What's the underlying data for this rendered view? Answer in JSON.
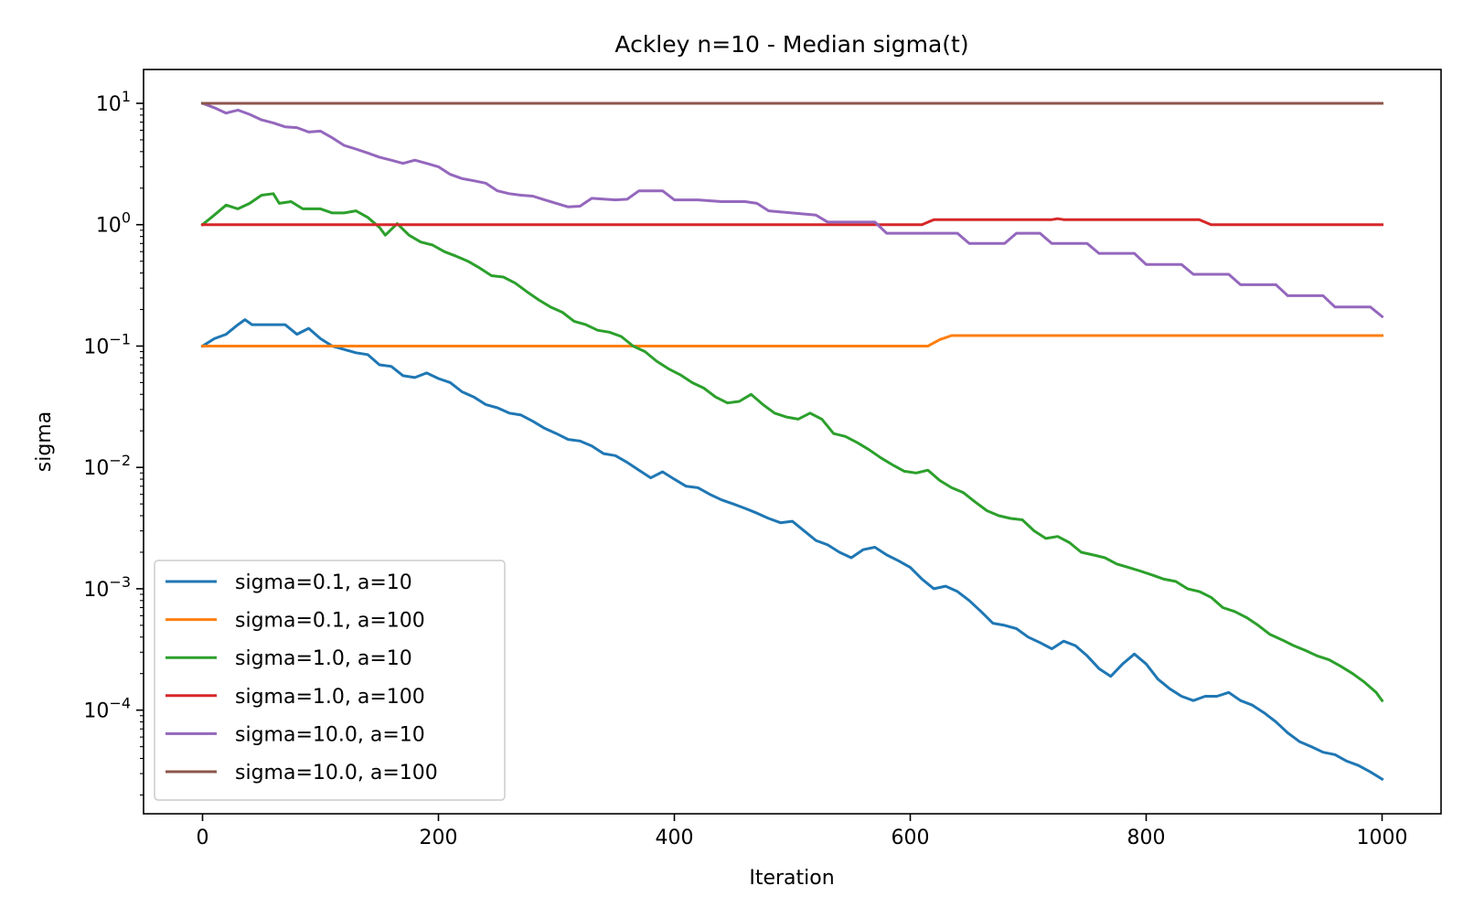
{
  "chart_data": {
    "type": "line",
    "title": "Ackley n=10 - Median sigma(t)",
    "xlabel": "Iteration",
    "ylabel": "sigma",
    "xlim": [
      -50,
      1050
    ],
    "ylim": [
      1.4e-05,
      19
    ],
    "yscale": "log",
    "grid": false,
    "legend_position": "lower-left",
    "x_ticks": [
      {
        "value": 0,
        "label": "0"
      },
      {
        "value": 200,
        "label": "200"
      },
      {
        "value": 400,
        "label": "400"
      },
      {
        "value": 600,
        "label": "600"
      },
      {
        "value": 800,
        "label": "800"
      },
      {
        "value": 1000,
        "label": "1000"
      }
    ],
    "y_ticks": [
      {
        "value": 10,
        "base": "10",
        "exp": "1"
      },
      {
        "value": 1,
        "base": "10",
        "exp": "0"
      },
      {
        "value": 0.1,
        "base": "10",
        "exp": "−1"
      },
      {
        "value": 0.01,
        "base": "10",
        "exp": "−2"
      },
      {
        "value": 0.001,
        "base": "10",
        "exp": "−3"
      },
      {
        "value": 0.0001,
        "base": "10",
        "exp": "−4"
      }
    ],
    "series": [
      {
        "name": "sigma=0.1, a=10",
        "color": "#1f77b4",
        "points": [
          [
            0,
            0.1
          ],
          [
            10,
            0.115
          ],
          [
            20,
            0.125
          ],
          [
            30,
            0.15
          ],
          [
            36,
            0.165
          ],
          [
            42,
            0.15
          ],
          [
            70,
            0.15
          ],
          [
            80,
            0.125
          ],
          [
            90,
            0.14
          ],
          [
            100,
            0.115
          ],
          [
            110,
            0.1
          ],
          [
            130,
            0.088
          ],
          [
            140,
            0.085
          ],
          [
            150,
            0.07
          ],
          [
            160,
            0.068
          ],
          [
            170,
            0.057
          ],
          [
            180,
            0.055
          ],
          [
            190,
            0.06
          ],
          [
            200,
            0.054
          ],
          [
            210,
            0.05
          ],
          [
            220,
            0.042
          ],
          [
            230,
            0.038
          ],
          [
            240,
            0.033
          ],
          [
            250,
            0.031
          ],
          [
            260,
            0.028
          ],
          [
            270,
            0.027
          ],
          [
            280,
            0.024
          ],
          [
            290,
            0.021
          ],
          [
            300,
            0.019
          ],
          [
            310,
            0.017
          ],
          [
            320,
            0.0165
          ],
          [
            330,
            0.015
          ],
          [
            340,
            0.013
          ],
          [
            350,
            0.0125
          ],
          [
            360,
            0.011
          ],
          [
            370,
            0.0095
          ],
          [
            380,
            0.0082
          ],
          [
            390,
            0.0092
          ],
          [
            400,
            0.008
          ],
          [
            410,
            0.007
          ],
          [
            420,
            0.0068
          ],
          [
            430,
            0.006
          ],
          [
            440,
            0.0054
          ],
          [
            450,
            0.005
          ],
          [
            460,
            0.0046
          ],
          [
            470,
            0.0042
          ],
          [
            480,
            0.0038
          ],
          [
            490,
            0.0035
          ],
          [
            500,
            0.0036
          ],
          [
            510,
            0.003
          ],
          [
            520,
            0.0025
          ],
          [
            530,
            0.0023
          ],
          [
            540,
            0.002
          ],
          [
            550,
            0.0018
          ],
          [
            560,
            0.0021
          ],
          [
            570,
            0.0022
          ],
          [
            580,
            0.0019
          ],
          [
            590,
            0.0017
          ],
          [
            600,
            0.0015
          ],
          [
            610,
            0.0012
          ],
          [
            620,
            0.001
          ],
          [
            630,
            0.00105
          ],
          [
            640,
            0.00095
          ],
          [
            650,
            0.0008
          ],
          [
            660,
            0.00065
          ],
          [
            670,
            0.00052
          ],
          [
            680,
            0.0005
          ],
          [
            690,
            0.00047
          ],
          [
            700,
            0.0004
          ],
          [
            710,
            0.00036
          ],
          [
            720,
            0.00032
          ],
          [
            730,
            0.00037
          ],
          [
            740,
            0.00034
          ],
          [
            750,
            0.00028
          ],
          [
            760,
            0.00022
          ],
          [
            770,
            0.00019
          ],
          [
            780,
            0.00024
          ],
          [
            790,
            0.00029
          ],
          [
            800,
            0.00024
          ],
          [
            810,
            0.00018
          ],
          [
            820,
            0.00015
          ],
          [
            830,
            0.00013
          ],
          [
            840,
            0.00012
          ],
          [
            850,
            0.00013
          ],
          [
            860,
            0.00013
          ],
          [
            870,
            0.00014
          ],
          [
            880,
            0.00012
          ],
          [
            890,
            0.00011
          ],
          [
            900,
            9.5e-05
          ],
          [
            910,
            8e-05
          ],
          [
            920,
            6.5e-05
          ],
          [
            930,
            5.5e-05
          ],
          [
            940,
            5e-05
          ],
          [
            950,
            4.5e-05
          ],
          [
            960,
            4.3e-05
          ],
          [
            970,
            3.8e-05
          ],
          [
            980,
            3.5e-05
          ],
          [
            990,
            3.1e-05
          ],
          [
            1000,
            2.7e-05
          ]
        ]
      },
      {
        "name": "sigma=0.1, a=100",
        "color": "#ff7f0e",
        "points": [
          [
            0,
            0.1
          ],
          [
            615,
            0.1
          ],
          [
            625,
            0.113
          ],
          [
            635,
            0.122
          ],
          [
            1000,
            0.122
          ]
        ]
      },
      {
        "name": "sigma=1.0, a=10",
        "color": "#2ca02c",
        "points": [
          [
            0,
            1.0
          ],
          [
            10,
            1.2
          ],
          [
            20,
            1.45
          ],
          [
            30,
            1.35
          ],
          [
            40,
            1.5
          ],
          [
            50,
            1.75
          ],
          [
            60,
            1.8
          ],
          [
            65,
            1.5
          ],
          [
            75,
            1.55
          ],
          [
            85,
            1.35
          ],
          [
            100,
            1.35
          ],
          [
            110,
            1.25
          ],
          [
            120,
            1.25
          ],
          [
            130,
            1.3
          ],
          [
            140,
            1.15
          ],
          [
            150,
            0.95
          ],
          [
            155,
            0.82
          ],
          [
            165,
            1.02
          ],
          [
            175,
            0.82
          ],
          [
            185,
            0.72
          ],
          [
            195,
            0.68
          ],
          [
            205,
            0.6
          ],
          [
            215,
            0.55
          ],
          [
            225,
            0.5
          ],
          [
            235,
            0.44
          ],
          [
            245,
            0.38
          ],
          [
            255,
            0.37
          ],
          [
            265,
            0.33
          ],
          [
            275,
            0.28
          ],
          [
            285,
            0.24
          ],
          [
            295,
            0.21
          ],
          [
            305,
            0.19
          ],
          [
            315,
            0.16
          ],
          [
            325,
            0.15
          ],
          [
            335,
            0.135
          ],
          [
            345,
            0.13
          ],
          [
            355,
            0.12
          ],
          [
            365,
            0.1
          ],
          [
            375,
            0.09
          ],
          [
            385,
            0.075
          ],
          [
            395,
            0.065
          ],
          [
            405,
            0.058
          ],
          [
            415,
            0.05
          ],
          [
            425,
            0.045
          ],
          [
            435,
            0.038
          ],
          [
            445,
            0.034
          ],
          [
            455,
            0.035
          ],
          [
            465,
            0.04
          ],
          [
            475,
            0.033
          ],
          [
            485,
            0.028
          ],
          [
            495,
            0.026
          ],
          [
            505,
            0.025
          ],
          [
            515,
            0.028
          ],
          [
            525,
            0.025
          ],
          [
            535,
            0.019
          ],
          [
            545,
            0.018
          ],
          [
            555,
            0.016
          ],
          [
            565,
            0.014
          ],
          [
            575,
            0.012
          ],
          [
            585,
            0.0105
          ],
          [
            595,
            0.0093
          ],
          [
            605,
            0.009
          ],
          [
            615,
            0.0095
          ],
          [
            625,
            0.0078
          ],
          [
            635,
            0.0068
          ],
          [
            645,
            0.0062
          ],
          [
            655,
            0.0052
          ],
          [
            665,
            0.0044
          ],
          [
            675,
            0.004
          ],
          [
            685,
            0.0038
          ],
          [
            695,
            0.0037
          ],
          [
            705,
            0.003
          ],
          [
            715,
            0.0026
          ],
          [
            725,
            0.0027
          ],
          [
            735,
            0.0024
          ],
          [
            745,
            0.002
          ],
          [
            755,
            0.0019
          ],
          [
            765,
            0.0018
          ],
          [
            775,
            0.0016
          ],
          [
            785,
            0.0015
          ],
          [
            795,
            0.0014
          ],
          [
            805,
            0.0013
          ],
          [
            815,
            0.0012
          ],
          [
            825,
            0.00115
          ],
          [
            835,
            0.001
          ],
          [
            845,
            0.00095
          ],
          [
            855,
            0.00085
          ],
          [
            865,
            0.0007
          ],
          [
            875,
            0.00065
          ],
          [
            885,
            0.00058
          ],
          [
            895,
            0.0005
          ],
          [
            905,
            0.00042
          ],
          [
            915,
            0.00038
          ],
          [
            925,
            0.00034
          ],
          [
            935,
            0.00031
          ],
          [
            945,
            0.00028
          ],
          [
            955,
            0.00026
          ],
          [
            965,
            0.00023
          ],
          [
            975,
            0.0002
          ],
          [
            985,
            0.00017
          ],
          [
            995,
            0.00014
          ],
          [
            1000,
            0.00012
          ]
        ]
      },
      {
        "name": "sigma=1.0, a=100",
        "color": "#d62728",
        "points": [
          [
            0,
            1.0
          ],
          [
            610,
            1.0
          ],
          [
            620,
            1.1
          ],
          [
            720,
            1.1
          ],
          [
            725,
            1.12
          ],
          [
            730,
            1.1
          ],
          [
            845,
            1.1
          ],
          [
            855,
            1.0
          ],
          [
            1000,
            1.0
          ]
        ]
      },
      {
        "name": "sigma=10.0, a=10",
        "color": "#9467bd",
        "points": [
          [
            0,
            10
          ],
          [
            10,
            9.2
          ],
          [
            20,
            8.3
          ],
          [
            30,
            8.8
          ],
          [
            40,
            8.1
          ],
          [
            50,
            7.3
          ],
          [
            60,
            6.9
          ],
          [
            70,
            6.4
          ],
          [
            80,
            6.3
          ],
          [
            90,
            5.8
          ],
          [
            100,
            5.9
          ],
          [
            110,
            5.2
          ],
          [
            120,
            4.5
          ],
          [
            130,
            4.2
          ],
          [
            140,
            3.9
          ],
          [
            150,
            3.6
          ],
          [
            160,
            3.4
          ],
          [
            170,
            3.2
          ],
          [
            180,
            3.4
          ],
          [
            190,
            3.2
          ],
          [
            200,
            3.0
          ],
          [
            210,
            2.6
          ],
          [
            220,
            2.4
          ],
          [
            230,
            2.3
          ],
          [
            240,
            2.2
          ],
          [
            250,
            1.9
          ],
          [
            260,
            1.8
          ],
          [
            270,
            1.75
          ],
          [
            280,
            1.72
          ],
          [
            290,
            1.6
          ],
          [
            300,
            1.5
          ],
          [
            310,
            1.4
          ],
          [
            320,
            1.42
          ],
          [
            330,
            1.65
          ],
          [
            350,
            1.6
          ],
          [
            360,
            1.62
          ],
          [
            370,
            1.9
          ],
          [
            390,
            1.9
          ],
          [
            400,
            1.6
          ],
          [
            420,
            1.6
          ],
          [
            440,
            1.55
          ],
          [
            460,
            1.55
          ],
          [
            470,
            1.5
          ],
          [
            480,
            1.3
          ],
          [
            520,
            1.2
          ],
          [
            530,
            1.05
          ],
          [
            570,
            1.05
          ],
          [
            580,
            0.85
          ],
          [
            640,
            0.85
          ],
          [
            650,
            0.7
          ],
          [
            680,
            0.7
          ],
          [
            690,
            0.85
          ],
          [
            710,
            0.85
          ],
          [
            720,
            0.7
          ],
          [
            750,
            0.7
          ],
          [
            760,
            0.58
          ],
          [
            790,
            0.58
          ],
          [
            800,
            0.47
          ],
          [
            830,
            0.47
          ],
          [
            840,
            0.39
          ],
          [
            870,
            0.39
          ],
          [
            880,
            0.32
          ],
          [
            910,
            0.32
          ],
          [
            920,
            0.26
          ],
          [
            950,
            0.26
          ],
          [
            960,
            0.21
          ],
          [
            990,
            0.21
          ],
          [
            1000,
            0.175
          ]
        ]
      },
      {
        "name": "sigma=10.0, a=100",
        "color": "#8c564b",
        "points": [
          [
            0,
            10
          ],
          [
            1000,
            10
          ]
        ]
      }
    ]
  }
}
